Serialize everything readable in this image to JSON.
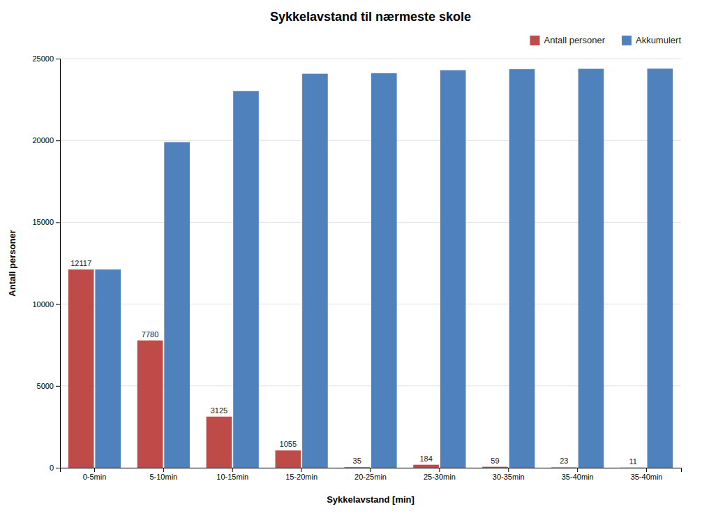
{
  "chart_data": {
    "type": "bar",
    "title": "Sykkelavstand til nærmeste skole",
    "xlabel": "Sykkelavstand [min]",
    "ylabel": "Antall personer",
    "categories": [
      "0-5min",
      "5-10min",
      "10-15min",
      "15-20min",
      "20-25min",
      "25-30min",
      "30-35min",
      "35-40min",
      "35-40min"
    ],
    "series": [
      {
        "name": "Antall personer",
        "color": "#BE4B48",
        "data_labels": true,
        "values": [
          12117,
          7780,
          3125,
          1055,
          35,
          184,
          59,
          23,
          11
        ]
      },
      {
        "name": "Akkumulert",
        "color": "#4F81BD",
        "values": [
          12117,
          19897,
          23022,
          24077,
          24112,
          24296,
          24355,
          24378,
          24389
        ]
      }
    ],
    "ylim": [
      0,
      25000
    ],
    "yticks": [
      0,
      5000,
      10000,
      15000,
      20000,
      25000
    ],
    "grid": true,
    "legend": "upper right"
  }
}
